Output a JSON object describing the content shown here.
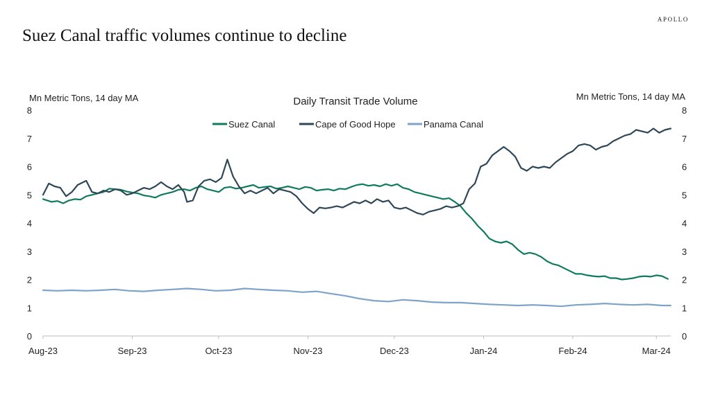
{
  "header": {
    "brand": "APOLLO",
    "title": "Suez Canal traffic volumes continue to decline"
  },
  "chart_data": {
    "type": "line",
    "title": "Daily Transit Trade Volume",
    "ylabel_left": "Mn Metric Tons, 14 day MA",
    "ylabel_right": "Mn Metric Tons, 14 day MA",
    "ylim": [
      0,
      8
    ],
    "y_ticks": [
      0,
      1,
      2,
      3,
      4,
      5,
      6,
      7,
      8
    ],
    "x_range": [
      0,
      218
    ],
    "x_ticks": [
      {
        "label": "Aug-23",
        "day": 0
      },
      {
        "label": "Sep-23",
        "day": 31
      },
      {
        "label": "Oct-23",
        "day": 61
      },
      {
        "label": "Nov-23",
        "day": 92
      },
      {
        "label": "Dec-23",
        "day": 122
      },
      {
        "label": "Jan-24",
        "day": 153
      },
      {
        "label": "Feb-24",
        "day": 184
      },
      {
        "label": "Mar-24",
        "day": 213
      }
    ],
    "legend_position": "top-center",
    "series": [
      {
        "name": "Suez Canal",
        "color": "#0f7a5c",
        "points": [
          [
            0,
            4.85
          ],
          [
            3,
            4.75
          ],
          [
            5,
            4.78
          ],
          [
            7,
            4.7
          ],
          [
            9,
            4.8
          ],
          [
            11,
            4.85
          ],
          [
            13,
            4.83
          ],
          [
            15,
            4.95
          ],
          [
            17,
            5.0
          ],
          [
            19,
            5.05
          ],
          [
            21,
            5.1
          ],
          [
            23,
            5.22
          ],
          [
            25,
            5.2
          ],
          [
            27,
            5.18
          ],
          [
            29,
            5.12
          ],
          [
            31,
            5.08
          ],
          [
            33,
            5.05
          ],
          [
            35,
            4.98
          ],
          [
            37,
            4.95
          ],
          [
            39,
            4.9
          ],
          [
            41,
            5.0
          ],
          [
            43,
            5.05
          ],
          [
            45,
            5.1
          ],
          [
            47,
            5.18
          ],
          [
            49,
            5.2
          ],
          [
            51,
            5.15
          ],
          [
            53,
            5.25
          ],
          [
            55,
            5.3
          ],
          [
            57,
            5.2
          ],
          [
            59,
            5.15
          ],
          [
            61,
            5.1
          ],
          [
            63,
            5.25
          ],
          [
            65,
            5.28
          ],
          [
            67,
            5.22
          ],
          [
            69,
            5.25
          ],
          [
            71,
            5.3
          ],
          [
            73,
            5.35
          ],
          [
            75,
            5.25
          ],
          [
            77,
            5.28
          ],
          [
            79,
            5.3
          ],
          [
            81,
            5.22
          ],
          [
            83,
            5.25
          ],
          [
            85,
            5.3
          ],
          [
            87,
            5.25
          ],
          [
            89,
            5.2
          ],
          [
            91,
            5.28
          ],
          [
            93,
            5.25
          ],
          [
            95,
            5.15
          ],
          [
            97,
            5.18
          ],
          [
            99,
            5.2
          ],
          [
            101,
            5.15
          ],
          [
            103,
            5.22
          ],
          [
            105,
            5.2
          ],
          [
            107,
            5.28
          ],
          [
            109,
            5.35
          ],
          [
            111,
            5.38
          ],
          [
            113,
            5.32
          ],
          [
            115,
            5.35
          ],
          [
            117,
            5.3
          ],
          [
            119,
            5.38
          ],
          [
            121,
            5.32
          ],
          [
            123,
            5.38
          ],
          [
            125,
            5.25
          ],
          [
            127,
            5.2
          ],
          [
            129,
            5.1
          ],
          [
            131,
            5.05
          ],
          [
            133,
            5.0
          ],
          [
            135,
            4.95
          ],
          [
            137,
            4.9
          ],
          [
            139,
            4.85
          ],
          [
            141,
            4.88
          ],
          [
            143,
            4.75
          ],
          [
            145,
            4.6
          ],
          [
            147,
            4.35
          ],
          [
            149,
            4.15
          ],
          [
            151,
            3.9
          ],
          [
            153,
            3.7
          ],
          [
            155,
            3.45
          ],
          [
            157,
            3.35
          ],
          [
            159,
            3.3
          ],
          [
            161,
            3.35
          ],
          [
            163,
            3.25
          ],
          [
            165,
            3.05
          ],
          [
            167,
            2.9
          ],
          [
            169,
            2.95
          ],
          [
            171,
            2.9
          ],
          [
            173,
            2.8
          ],
          [
            175,
            2.65
          ],
          [
            177,
            2.55
          ],
          [
            179,
            2.5
          ],
          [
            181,
            2.4
          ],
          [
            183,
            2.3
          ],
          [
            185,
            2.2
          ],
          [
            187,
            2.2
          ],
          [
            189,
            2.15
          ],
          [
            191,
            2.12
          ],
          [
            193,
            2.1
          ],
          [
            195,
            2.12
          ],
          [
            197,
            2.05
          ],
          [
            199,
            2.05
          ],
          [
            201,
            2.0
          ],
          [
            203,
            2.02
          ],
          [
            205,
            2.05
          ],
          [
            207,
            2.1
          ],
          [
            209,
            2.12
          ],
          [
            211,
            2.1
          ],
          [
            213,
            2.15
          ],
          [
            215,
            2.12
          ],
          [
            217,
            2.02
          ]
        ]
      },
      {
        "name": "Cape of Good Hope",
        "color": "#2d4658",
        "points": [
          [
            0,
            5.0
          ],
          [
            2,
            5.4
          ],
          [
            4,
            5.3
          ],
          [
            6,
            5.25
          ],
          [
            8,
            4.95
          ],
          [
            10,
            5.1
          ],
          [
            12,
            5.35
          ],
          [
            14,
            5.45
          ],
          [
            15,
            5.5
          ],
          [
            17,
            5.1
          ],
          [
            19,
            5.05
          ],
          [
            21,
            5.15
          ],
          [
            23,
            5.1
          ],
          [
            25,
            5.2
          ],
          [
            27,
            5.15
          ],
          [
            29,
            5.0
          ],
          [
            31,
            5.05
          ],
          [
            33,
            5.15
          ],
          [
            35,
            5.25
          ],
          [
            37,
            5.2
          ],
          [
            39,
            5.3
          ],
          [
            41,
            5.45
          ],
          [
            43,
            5.3
          ],
          [
            45,
            5.2
          ],
          [
            47,
            5.35
          ],
          [
            49,
            5.1
          ],
          [
            50,
            4.75
          ],
          [
            52,
            4.8
          ],
          [
            54,
            5.3
          ],
          [
            56,
            5.5
          ],
          [
            58,
            5.55
          ],
          [
            60,
            5.45
          ],
          [
            62,
            5.6
          ],
          [
            64,
            6.25
          ],
          [
            66,
            5.65
          ],
          [
            68,
            5.3
          ],
          [
            70,
            5.05
          ],
          [
            72,
            5.15
          ],
          [
            74,
            5.05
          ],
          [
            76,
            5.15
          ],
          [
            78,
            5.25
          ],
          [
            80,
            5.05
          ],
          [
            82,
            5.2
          ],
          [
            84,
            5.15
          ],
          [
            86,
            5.1
          ],
          [
            88,
            4.95
          ],
          [
            90,
            4.7
          ],
          [
            92,
            4.5
          ],
          [
            94,
            4.35
          ],
          [
            96,
            4.55
          ],
          [
            98,
            4.52
          ],
          [
            100,
            4.55
          ],
          [
            102,
            4.6
          ],
          [
            104,
            4.55
          ],
          [
            106,
            4.65
          ],
          [
            108,
            4.75
          ],
          [
            110,
            4.7
          ],
          [
            112,
            4.8
          ],
          [
            114,
            4.7
          ],
          [
            116,
            4.85
          ],
          [
            118,
            4.75
          ],
          [
            120,
            4.8
          ],
          [
            122,
            4.55
          ],
          [
            124,
            4.5
          ],
          [
            126,
            4.55
          ],
          [
            128,
            4.45
          ],
          [
            130,
            4.35
          ],
          [
            132,
            4.3
          ],
          [
            134,
            4.4
          ],
          [
            136,
            4.45
          ],
          [
            138,
            4.5
          ],
          [
            140,
            4.6
          ],
          [
            142,
            4.55
          ],
          [
            144,
            4.6
          ],
          [
            146,
            4.7
          ],
          [
            148,
            5.2
          ],
          [
            150,
            5.4
          ],
          [
            152,
            6.0
          ],
          [
            154,
            6.1
          ],
          [
            156,
            6.4
          ],
          [
            158,
            6.55
          ],
          [
            160,
            6.7
          ],
          [
            162,
            6.55
          ],
          [
            164,
            6.35
          ],
          [
            166,
            5.95
          ],
          [
            168,
            5.85
          ],
          [
            170,
            6.0
          ],
          [
            172,
            5.95
          ],
          [
            174,
            6.0
          ],
          [
            176,
            5.95
          ],
          [
            178,
            6.15
          ],
          [
            180,
            6.3
          ],
          [
            182,
            6.45
          ],
          [
            184,
            6.55
          ],
          [
            186,
            6.75
          ],
          [
            188,
            6.8
          ],
          [
            190,
            6.75
          ],
          [
            192,
            6.6
          ],
          [
            194,
            6.7
          ],
          [
            196,
            6.75
          ],
          [
            198,
            6.9
          ],
          [
            200,
            7.0
          ],
          [
            202,
            7.1
          ],
          [
            204,
            7.15
          ],
          [
            206,
            7.3
          ],
          [
            208,
            7.25
          ],
          [
            210,
            7.2
          ],
          [
            212,
            7.35
          ],
          [
            214,
            7.2
          ],
          [
            216,
            7.3
          ],
          [
            218,
            7.35
          ]
        ]
      },
      {
        "name": "Panama Canal",
        "color": "#7ea2c8",
        "points": [
          [
            0,
            1.62
          ],
          [
            5,
            1.6
          ],
          [
            10,
            1.62
          ],
          [
            15,
            1.6
          ],
          [
            20,
            1.62
          ],
          [
            25,
            1.65
          ],
          [
            30,
            1.6
          ],
          [
            35,
            1.58
          ],
          [
            40,
            1.62
          ],
          [
            45,
            1.65
          ],
          [
            50,
            1.68
          ],
          [
            55,
            1.65
          ],
          [
            60,
            1.6
          ],
          [
            65,
            1.62
          ],
          [
            70,
            1.68
          ],
          [
            75,
            1.65
          ],
          [
            80,
            1.62
          ],
          [
            85,
            1.6
          ],
          [
            90,
            1.55
          ],
          [
            95,
            1.58
          ],
          [
            100,
            1.5
          ],
          [
            105,
            1.42
          ],
          [
            110,
            1.32
          ],
          [
            115,
            1.25
          ],
          [
            120,
            1.22
          ],
          [
            125,
            1.28
          ],
          [
            130,
            1.25
          ],
          [
            135,
            1.2
          ],
          [
            140,
            1.18
          ],
          [
            145,
            1.18
          ],
          [
            150,
            1.15
          ],
          [
            155,
            1.12
          ],
          [
            160,
            1.1
          ],
          [
            165,
            1.08
          ],
          [
            170,
            1.1
          ],
          [
            175,
            1.08
          ],
          [
            180,
            1.05
          ],
          [
            185,
            1.1
          ],
          [
            190,
            1.12
          ],
          [
            195,
            1.15
          ],
          [
            200,
            1.12
          ],
          [
            205,
            1.1
          ],
          [
            210,
            1.12
          ],
          [
            215,
            1.08
          ],
          [
            218,
            1.08
          ]
        ]
      }
    ]
  }
}
